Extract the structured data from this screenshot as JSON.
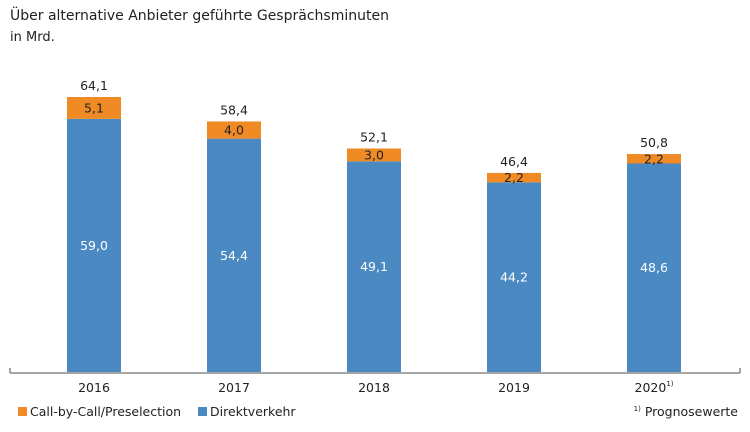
{
  "chart_data": {
    "type": "bar",
    "stacked": true,
    "title": "Über alternative Anbieter geführte Gesprächsminuten",
    "subtitle": "in Mrd.",
    "categories": [
      "2016",
      "2017",
      "2018",
      "2019",
      "2020"
    ],
    "category_footnotes": [
      "",
      "",
      "",
      "",
      "1)"
    ],
    "series": [
      {
        "name": "Direktverkehr",
        "color": "#4a89c2",
        "values": [
          59.0,
          54.4,
          49.1,
          44.2,
          48.6
        ],
        "labels": [
          "59,0",
          "54,4",
          "49,1",
          "44,2",
          "48,6"
        ]
      },
      {
        "name": "Call-by-Call/Preselection",
        "color": "#f08a24",
        "values": [
          5.1,
          4.0,
          3.0,
          2.2,
          2.2
        ],
        "labels": [
          "5,1",
          "4,0",
          "3,0",
          "2,2",
          "2,2"
        ]
      }
    ],
    "totals": [
      "64,1",
      "58,4",
      "52,1",
      "46,4",
      "50,8"
    ],
    "ylim": [
      0,
      64.1
    ],
    "grid": false,
    "legend_placement": "bottom-left",
    "footnote": {
      "mark": "1)",
      "text": "Prognosewerte"
    }
  }
}
